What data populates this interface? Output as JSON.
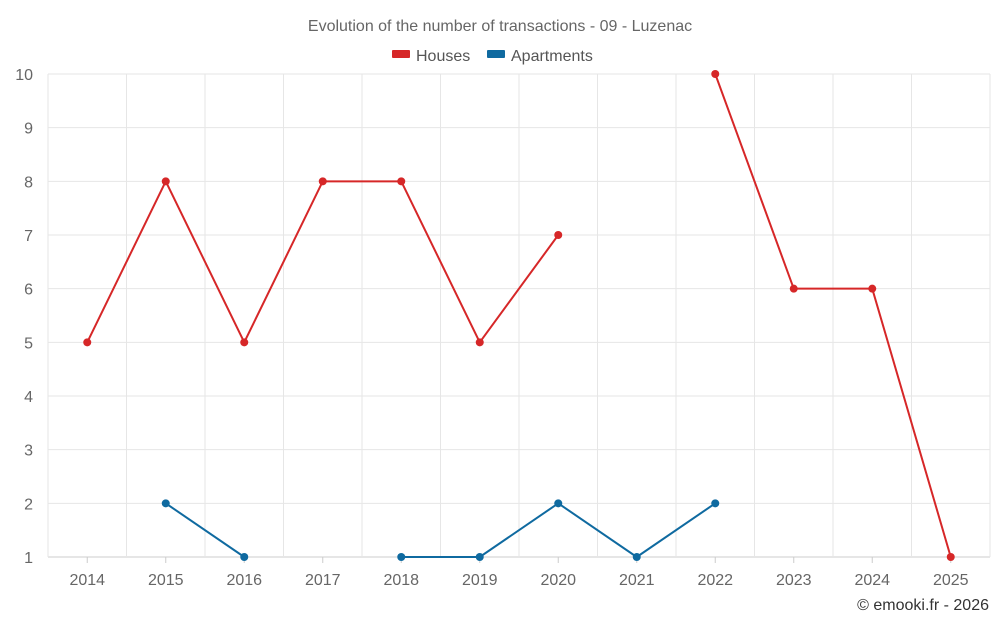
{
  "chart_data": {
    "type": "line",
    "title": "Evolution of the number of transactions - 09 - Luzenac",
    "categories": [
      "2014",
      "2015",
      "2016",
      "2017",
      "2018",
      "2019",
      "2020",
      "2021",
      "2022",
      "2023",
      "2024",
      "2025"
    ],
    "ylim": [
      1,
      10
    ],
    "yticks": [
      1,
      2,
      3,
      4,
      5,
      6,
      7,
      8,
      9,
      10
    ],
    "grid": true,
    "legend_position": "top-center",
    "series": [
      {
        "name": "Houses",
        "color": "#d62728",
        "values": [
          5,
          8,
          5,
          8,
          8,
          5,
          7,
          null,
          10,
          6,
          6,
          1
        ]
      },
      {
        "name": "Apartments",
        "color": "#0f6aa0",
        "values": [
          null,
          2,
          1,
          null,
          1,
          1,
          2,
          1,
          2,
          null,
          null,
          null
        ]
      }
    ]
  },
  "credit": "© emooki.fr - 2026"
}
